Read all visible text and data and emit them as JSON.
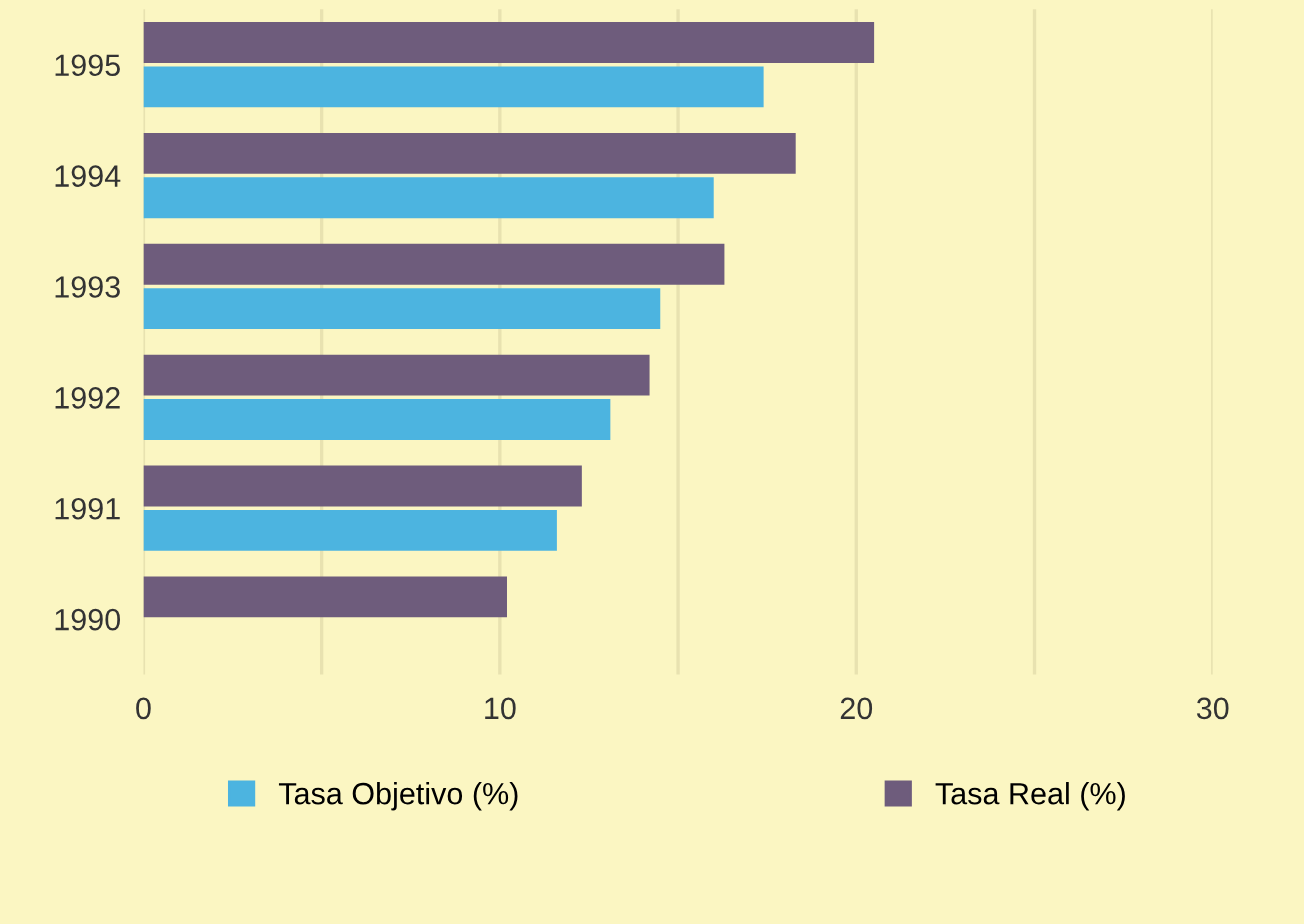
{
  "chart_data": {
    "type": "bar",
    "orientation": "horizontal",
    "categories": [
      "1995",
      "1994",
      "1993",
      "1992",
      "1991",
      "1990"
    ],
    "series": [
      {
        "name": "Tasa Objetivo (%)",
        "color": "#4cb4e0",
        "values": [
          17.4,
          16.0,
          14.5,
          13.1,
          11.6,
          null
        ]
      },
      {
        "name": "Tasa Real (%)",
        "color": "#6e5c7c",
        "values": [
          20.5,
          18.3,
          16.3,
          14.2,
          12.3,
          10.2
        ]
      }
    ],
    "xlim": [
      0,
      30
    ],
    "xticks": [
      0,
      {
        "value": 5,
        "label": null
      },
      10,
      {
        "value": 15,
        "label": null
      },
      20,
      {
        "value": 25,
        "label": null
      },
      30
    ],
    "grid": "x",
    "legend": "bottom"
  }
}
